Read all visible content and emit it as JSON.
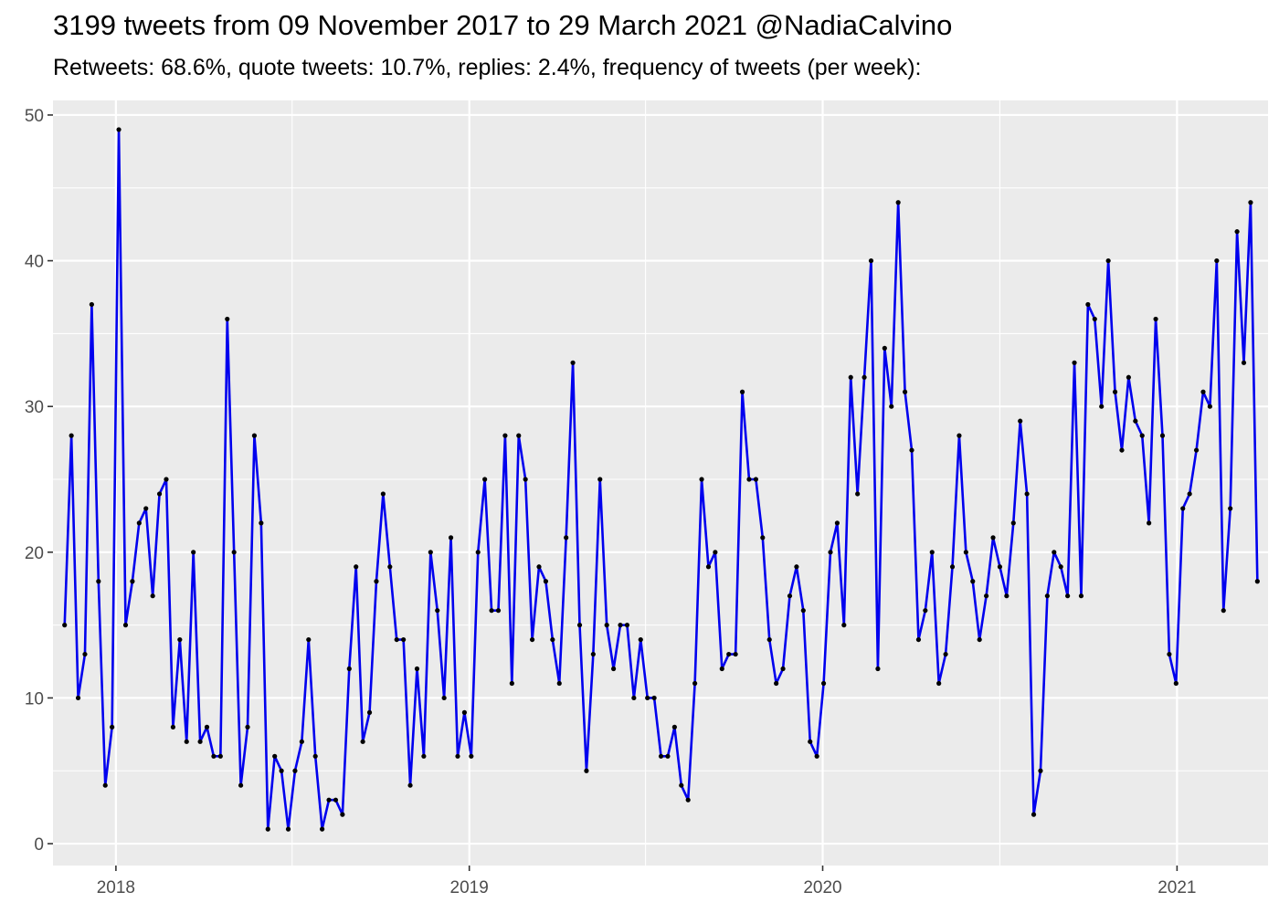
{
  "chart_data": {
    "type": "line",
    "title": "3199 tweets from 09 November 2017 to 29 March 2021 @NadiaCalvino",
    "subtitle": "Retweets: 68.6%, quote tweets: 10.7%, replies: 2.4%, frequency of tweets (per week):",
    "xlabel": "",
    "ylabel": "",
    "x_start": "2017-11-09",
    "x_step_days": 7,
    "xlim": [
      "2017-10-28",
      "2021-04-05"
    ],
    "ylim": [
      -1.5,
      51
    ],
    "x_ticks": [
      "2018",
      "2019",
      "2020",
      "2021"
    ],
    "y_ticks": [
      0,
      10,
      20,
      30,
      40,
      50
    ],
    "grid": true,
    "line_color": "#0000ee",
    "point_color": "#000000",
    "panel_color": "#ebebeb",
    "values": [
      15,
      28,
      10,
      13,
      37,
      18,
      4,
      8,
      49,
      15,
      18,
      22,
      23,
      17,
      24,
      25,
      8,
      14,
      7,
      20,
      7,
      8,
      6,
      6,
      36,
      20,
      4,
      8,
      28,
      22,
      1,
      6,
      5,
      1,
      5,
      7,
      14,
      6,
      1,
      3,
      3,
      2,
      12,
      19,
      7,
      9,
      18,
      24,
      19,
      14,
      14,
      4,
      12,
      6,
      20,
      16,
      10,
      21,
      6,
      9,
      6,
      20,
      25,
      16,
      16,
      28,
      11,
      28,
      25,
      14,
      19,
      18,
      14,
      11,
      21,
      33,
      15,
      5,
      13,
      25,
      15,
      12,
      15,
      15,
      10,
      14,
      10,
      10,
      6,
      6,
      8,
      4,
      3,
      11,
      25,
      19,
      20,
      12,
      13,
      13,
      31,
      25,
      25,
      21,
      14,
      11,
      12,
      17,
      19,
      16,
      7,
      6,
      11,
      20,
      22,
      15,
      32,
      24,
      32,
      40,
      12,
      34,
      30,
      44,
      31,
      27,
      14,
      16,
      20,
      11,
      13,
      19,
      28,
      20,
      18,
      14,
      17,
      21,
      19,
      17,
      22,
      29,
      24,
      2,
      5,
      17,
      20,
      19,
      17,
      33,
      17,
      37,
      36,
      30,
      40,
      31,
      27,
      32,
      29,
      28,
      22,
      36,
      28,
      13,
      11,
      23,
      24,
      27,
      31,
      30,
      40,
      16,
      23,
      42,
      33,
      44,
      18
    ]
  }
}
